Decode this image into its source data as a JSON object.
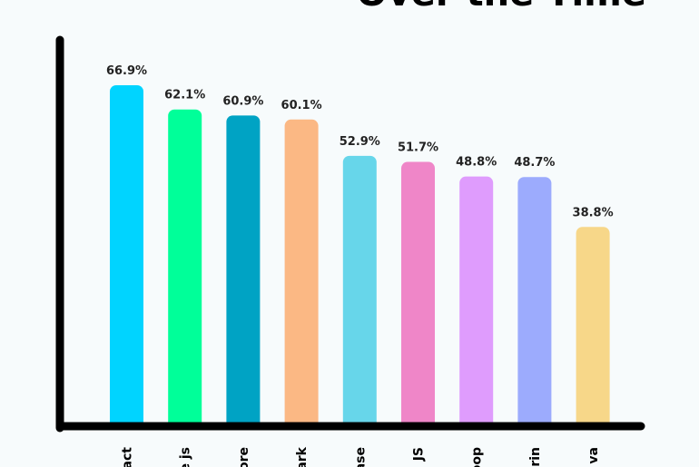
{
  "chart_data": {
    "type": "bar",
    "title": "Over the Time",
    "xlabel": "",
    "ylabel": "",
    "ylim": [
      0,
      75
    ],
    "grid": false,
    "categories": [
      "act",
      "e js",
      "ore",
      "ark",
      "ase",
      "JS",
      "oop",
      "rin",
      "va"
    ],
    "values": [
      66.9,
      62.1,
      60.9,
      60.1,
      52.9,
      51.7,
      48.8,
      48.7,
      38.8
    ],
    "value_labels": [
      "66.9%",
      "62.1%",
      "60.9%",
      "60.1%",
      "52.9%",
      "51.7%",
      "48.8%",
      "48.7%",
      "38.8%"
    ],
    "colors": [
      "#00d4ff",
      "#00ff99",
      "#00a3c4",
      "#fbb884",
      "#67d6ea",
      "#ef86c8",
      "#df9cfd",
      "#9cabfd",
      "#f7d789"
    ]
  }
}
